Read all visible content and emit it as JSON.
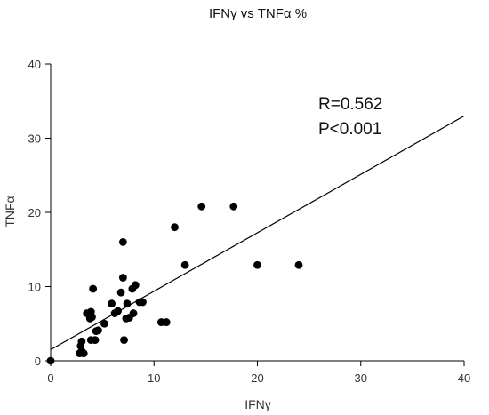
{
  "chart_data": {
    "type": "scatter",
    "title": "IFNγ vs TNFα %",
    "xlabel": "IFNγ",
    "ylabel": "TNFα",
    "xlim": [
      0,
      40
    ],
    "ylim": [
      0,
      40
    ],
    "xticks": [
      0,
      10,
      20,
      30,
      40
    ],
    "yticks": [
      0,
      10,
      20,
      30,
      40
    ],
    "grid": false,
    "annotations": [
      "R=0.562",
      "P<0.001"
    ],
    "regression_line": {
      "x": [
        0,
        40
      ],
      "y": [
        1.5,
        33
      ]
    },
    "series": [
      {
        "marker_color": "#000000",
        "points": [
          {
            "x": 0,
            "y": 0
          },
          {
            "x": 2.8,
            "y": 1.0
          },
          {
            "x": 3.0,
            "y": 1.3
          },
          {
            "x": 3.2,
            "y": 1.0
          },
          {
            "x": 2.9,
            "y": 2.0
          },
          {
            "x": 3.0,
            "y": 2.6
          },
          {
            "x": 3.5,
            "y": 6.4
          },
          {
            "x": 3.8,
            "y": 5.7
          },
          {
            "x": 3.9,
            "y": 6.6
          },
          {
            "x": 4.0,
            "y": 5.9
          },
          {
            "x": 4.1,
            "y": 9.7
          },
          {
            "x": 3.9,
            "y": 2.8
          },
          {
            "x": 4.3,
            "y": 2.8
          },
          {
            "x": 4.4,
            "y": 4.0
          },
          {
            "x": 4.6,
            "y": 4.1
          },
          {
            "x": 5.2,
            "y": 5.0
          },
          {
            "x": 5.9,
            "y": 7.7
          },
          {
            "x": 6.2,
            "y": 6.4
          },
          {
            "x": 6.5,
            "y": 6.7
          },
          {
            "x": 6.8,
            "y": 9.2
          },
          {
            "x": 7.0,
            "y": 16.0
          },
          {
            "x": 7.0,
            "y": 11.2
          },
          {
            "x": 7.1,
            "y": 2.8
          },
          {
            "x": 7.3,
            "y": 5.7
          },
          {
            "x": 7.4,
            "y": 7.7
          },
          {
            "x": 7.6,
            "y": 5.8
          },
          {
            "x": 7.9,
            "y": 9.7
          },
          {
            "x": 8.0,
            "y": 6.4
          },
          {
            "x": 8.2,
            "y": 10.2
          },
          {
            "x": 8.6,
            "y": 7.9
          },
          {
            "x": 8.9,
            "y": 7.9
          },
          {
            "x": 10.7,
            "y": 5.2
          },
          {
            "x": 11.2,
            "y": 5.2
          },
          {
            "x": 12.0,
            "y": 18.0
          },
          {
            "x": 13.0,
            "y": 12.9
          },
          {
            "x": 14.6,
            "y": 20.8
          },
          {
            "x": 17.7,
            "y": 20.8
          },
          {
            "x": 20.0,
            "y": 12.9
          },
          {
            "x": 24.0,
            "y": 12.9
          }
        ]
      }
    ]
  }
}
